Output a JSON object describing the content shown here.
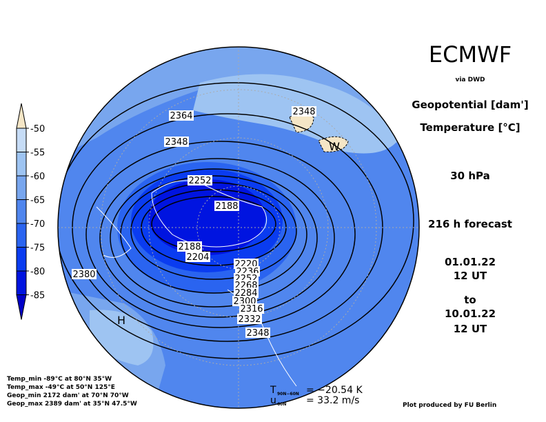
{
  "header": {
    "title": "ECMWF",
    "source": "via DWD",
    "variable_1": "Geopotential [dam']",
    "variable_2": "Temperature [°C]",
    "level": "30 hPa",
    "forecast": "216 h forecast",
    "init_date": "01.01.22",
    "init_time": "12 UT",
    "to": "to",
    "valid_date": "10.01.22",
    "valid_time": "12 UT"
  },
  "legend": {
    "levels": [
      -50,
      -55,
      -60,
      -65,
      -70,
      -75,
      -80,
      -85
    ],
    "colors": [
      "#f5e6c6",
      "#c6dcf6",
      "#9ec4f2",
      "#78a6ee",
      "#5086ee",
      "#2a64f0",
      "#0a3cf0",
      "#0014e0",
      "#0000c8"
    ]
  },
  "contour_labels": [
    "2364",
    "2348",
    "2348",
    "2252",
    "2188",
    "2188",
    "2204",
    "2220",
    "2236",
    "2252",
    "2268",
    "2284",
    "2300",
    "2316",
    "2332",
    "2348",
    "2380"
  ],
  "markers": [
    "H",
    "W"
  ],
  "stats": [
    "Temp_min -89°C at 80°N 35°W",
    "Temp_max -49°C at 50°N 125°E",
    "Geop_min 2172 dam' at 70°N 70°W",
    "Geop_max 2389 dam' at 35°N 47.5°W"
  ],
  "indices": [
    {
      "symbol": "T",
      "subscript": "90N−60N",
      "value": "= −20.54 K"
    },
    {
      "symbol": "u",
      "subscript": "60N",
      "value": "= 33.2 m/s"
    }
  ],
  "footer": "Plot produced by FU Berlin"
}
